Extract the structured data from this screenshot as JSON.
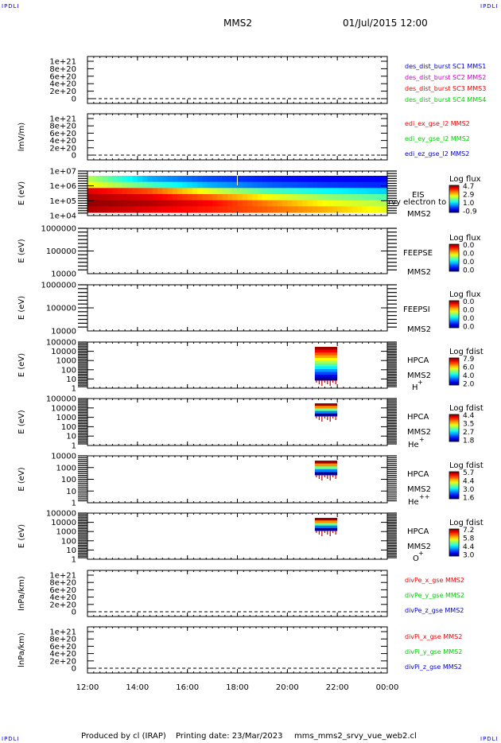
{
  "header": {
    "corner_tl": "IPDLI",
    "corner_tr": "IPDLI",
    "corner_bl": "IPDLI",
    "corner_br": "IPDLI",
    "spacecraft": "MMS2",
    "date": "01/Jul/2015 12:00"
  },
  "footer": {
    "produced": "Produced by cl (IRAP)",
    "printing": "Printing date: 23/Mar/2023",
    "script": "mms_mms2_srvy_vue_web2.cl"
  },
  "colors": {
    "c1": "#0000cc",
    "c2": "#cc00cc",
    "c3": "#ee0000",
    "c4": "#00cc00",
    "red": "#ee0000",
    "green": "#00cc00",
    "blue": "#0000cc"
  },
  "chart_data": {
    "type": "heatmap",
    "x_ticks": [
      "12:00",
      "14:00",
      "16:00",
      "18:00",
      "20:00",
      "22:00",
      "00:00"
    ],
    "xlim": [
      12,
      24
    ],
    "panels": [
      {
        "id": "des_dist",
        "kind": "line",
        "ylabel": "",
        "yticks": [
          "1e+21",
          "8e+20",
          "6e+20",
          "4e+20",
          "2e+20",
          "0"
        ],
        "legend": [
          {
            "text": "des_dist_burst SC1 MMS1",
            "color": "#0000cc"
          },
          {
            "text": "des_dist_burst SC2 MMS2",
            "color": "#cc00cc"
          },
          {
            "text": "des_dist_burst SC3 MMS3",
            "color": "#ee0000"
          },
          {
            "text": "des_dist_burst SC4 MMS4",
            "color": "#00cc00"
          }
        ]
      },
      {
        "id": "edi",
        "kind": "line",
        "ylabel": "lmV/m)",
        "yticks": [
          "1e+21",
          "8e+20",
          "6e+20",
          "4e+20",
          "2e+20",
          "0"
        ],
        "legend": [
          {
            "text": "edi_ex_gse_l2 MMS2",
            "color": "#ee0000"
          },
          {
            "text": "edi_ey_gse_l2 MMS2",
            "color": "#00cc00"
          },
          {
            "text": "edi_ez_gse_l2 MMS2",
            "color": "#0000cc"
          }
        ]
      },
      {
        "id": "eis",
        "kind": "spectrogram",
        "ylabel": "E (eV)",
        "yticks": [
          "1e+07",
          "1e+06",
          "1e+05",
          "1e+04"
        ],
        "instrument": [
          "EIS",
          "MMS2"
        ],
        "overlay": "rvy electron to",
        "cbar_title": "Log flux",
        "cbar_ticks": [
          "4.7",
          "2.9",
          "1.0",
          "-0.9"
        ]
      },
      {
        "id": "feepse",
        "kind": "spectrogram",
        "ylabel": "E (eV)",
        "yticks": [
          "1000000",
          "100000",
          "10000"
        ],
        "instrument": [
          "FEEPSE",
          "MMS2"
        ],
        "cbar_title": "Log flux",
        "cbar_ticks": [
          "0.0",
          "0.0",
          "0.0",
          "0.0"
        ]
      },
      {
        "id": "feepsi",
        "kind": "spectrogram",
        "ylabel": "E (eV)",
        "yticks": [
          "1000000",
          "100000",
          "10000"
        ],
        "instrument": [
          "FEEPSI",
          "MMS2"
        ],
        "cbar_title": "Log flux",
        "cbar_ticks": [
          "0.0",
          "0.0",
          "0.0",
          "0.0"
        ]
      },
      {
        "id": "hpca_h",
        "kind": "spectrogram",
        "ylabel": "E (eV)",
        "yticks": [
          "100000",
          "10000",
          "1000",
          "100",
          "10",
          "1"
        ],
        "instrument": [
          "HPCA",
          "MMS2"
        ],
        "species": "H",
        "charge": "+",
        "cbar_title": "Log fdist",
        "cbar_ticks": [
          "7.9",
          "6.0",
          "4.0",
          "2.0"
        ]
      },
      {
        "id": "hpca_he",
        "kind": "spectrogram",
        "ylabel": "E (eV)",
        "yticks": [
          "100000",
          "10000",
          "1000",
          "100",
          "10",
          "1"
        ],
        "instrument": [
          "HPCA",
          "MMS2"
        ],
        "species": "He",
        "charge": "+",
        "cbar_title": "Log fdist",
        "cbar_ticks": [
          "4.4",
          "3.5",
          "2.7",
          "1.8"
        ]
      },
      {
        "id": "hpca_hepp",
        "kind": "spectrogram",
        "ylabel": "E (eV)",
        "yticks": [
          "10000",
          "1000",
          "100",
          "10",
          "1"
        ],
        "instrument": [
          "HPCA",
          "MMS2"
        ],
        "species": "He",
        "charge": "++",
        "cbar_title": "Log fdist",
        "cbar_ticks": [
          "5.7",
          "4.4",
          "3.0",
          "1.6"
        ]
      },
      {
        "id": "hpca_o",
        "kind": "spectrogram",
        "ylabel": "E (eV)",
        "yticks": [
          "100000",
          "10000",
          "1000",
          "100",
          "10",
          "1"
        ],
        "instrument": [
          "HPCA",
          "MMS2"
        ],
        "species": "O",
        "charge": "+",
        "cbar_title": "Log fdist",
        "cbar_ticks": [
          "7.2",
          "5.8",
          "4.4",
          "3.0"
        ]
      },
      {
        "id": "divpe",
        "kind": "line",
        "ylabel": "lnPa/km)",
        "yticks": [
          "1e+21",
          "8e+20",
          "6e+20",
          "4e+20",
          "2e+20",
          "0"
        ],
        "legend": [
          {
            "text": "divPe_x_gse MMS2",
            "color": "#ee0000"
          },
          {
            "text": "divPe_y_gse MMS2",
            "color": "#00cc00"
          },
          {
            "text": "divPe_z_gse MMS2",
            "color": "#0000cc"
          }
        ]
      },
      {
        "id": "divpi",
        "kind": "line",
        "ylabel": "lnPa/km)",
        "yticks": [
          "1e+21",
          "8e+20",
          "6e+20",
          "4e+20",
          "2e+20",
          "0"
        ],
        "legend": [
          {
            "text": "divPi_x_gse MMS2",
            "color": "#ee0000"
          },
          {
            "text": "divPi_y_gse MMS2",
            "color": "#00cc00"
          },
          {
            "text": "divPi_z_gse MMS2",
            "color": "#0000cc"
          }
        ]
      }
    ],
    "hpca_active_interval": [
      21.1,
      22.0
    ]
  }
}
